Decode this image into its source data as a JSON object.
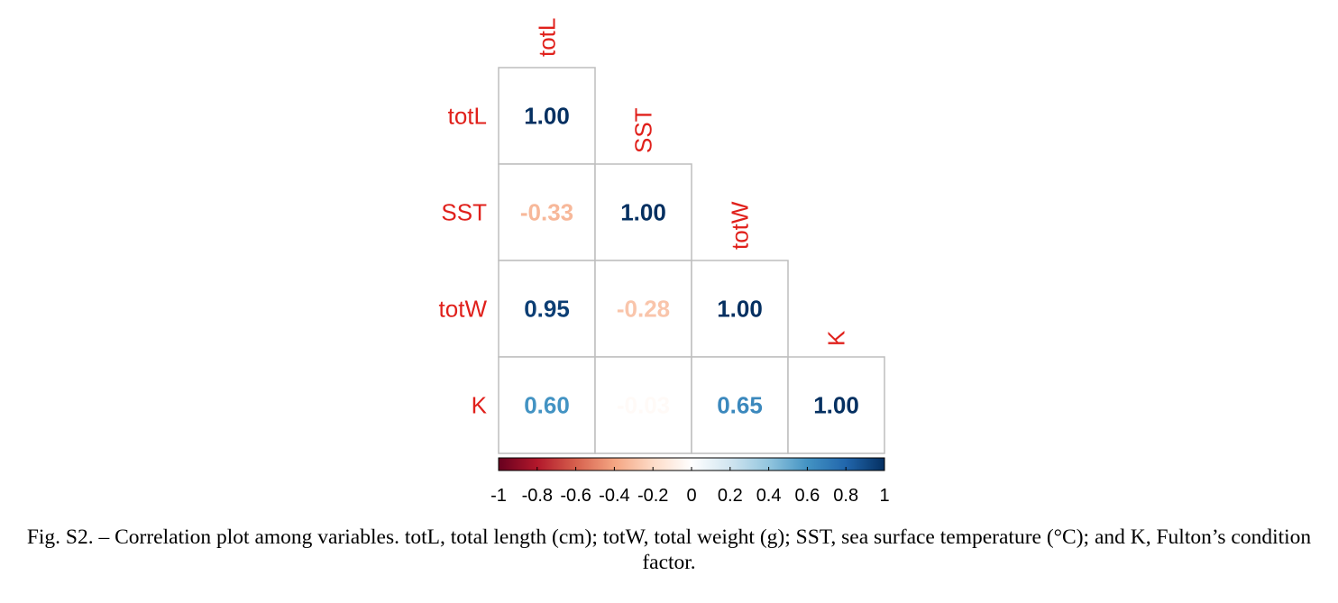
{
  "chart_data": {
    "type": "heatmap",
    "subtype": "correlation-lower-triangle",
    "variables": [
      "totL",
      "SST",
      "totW",
      "K"
    ],
    "matrix": [
      [
        1.0,
        null,
        null,
        null
      ],
      [
        -0.33,
        1.0,
        null,
        null
      ],
      [
        0.95,
        -0.28,
        1.0,
        null
      ],
      [
        0.6,
        -0.03,
        0.65,
        1.0
      ]
    ],
    "value_labels": [
      [
        "1.00",
        "",
        "",
        ""
      ],
      [
        "-0.33",
        "1.00",
        "",
        ""
      ],
      [
        "0.95",
        "-0.28",
        "1.00",
        ""
      ],
      [
        "0.60",
        "-0.03",
        "0.65",
        "1.00"
      ]
    ],
    "colorbar": {
      "range": [
        -1,
        1
      ],
      "ticks": [
        -1,
        -0.8,
        -0.6,
        -0.4,
        -0.2,
        0,
        0.2,
        0.4,
        0.6,
        0.8,
        1
      ],
      "tick_labels": [
        "-1",
        "-0.8",
        "-0.6",
        "-0.4",
        "-0.2",
        "0",
        "0.2",
        "0.4",
        "0.6",
        "0.8",
        "1"
      ],
      "palette": [
        "#67001f",
        "#b2182b",
        "#d6604d",
        "#f4a582",
        "#fddbc7",
        "#ffffff",
        "#d1e5f0",
        "#92c5de",
        "#4393c3",
        "#2166ac",
        "#053061"
      ],
      "placement": "bottom"
    },
    "label_color": "#e0201b",
    "grid_color": "#bebebe"
  },
  "caption": "Fig. S2. – Correlation plot among variables. totL, total length (cm); totW, total weight (g); SST, sea surface temperature (°C); and K, Fulton’s condition factor."
}
